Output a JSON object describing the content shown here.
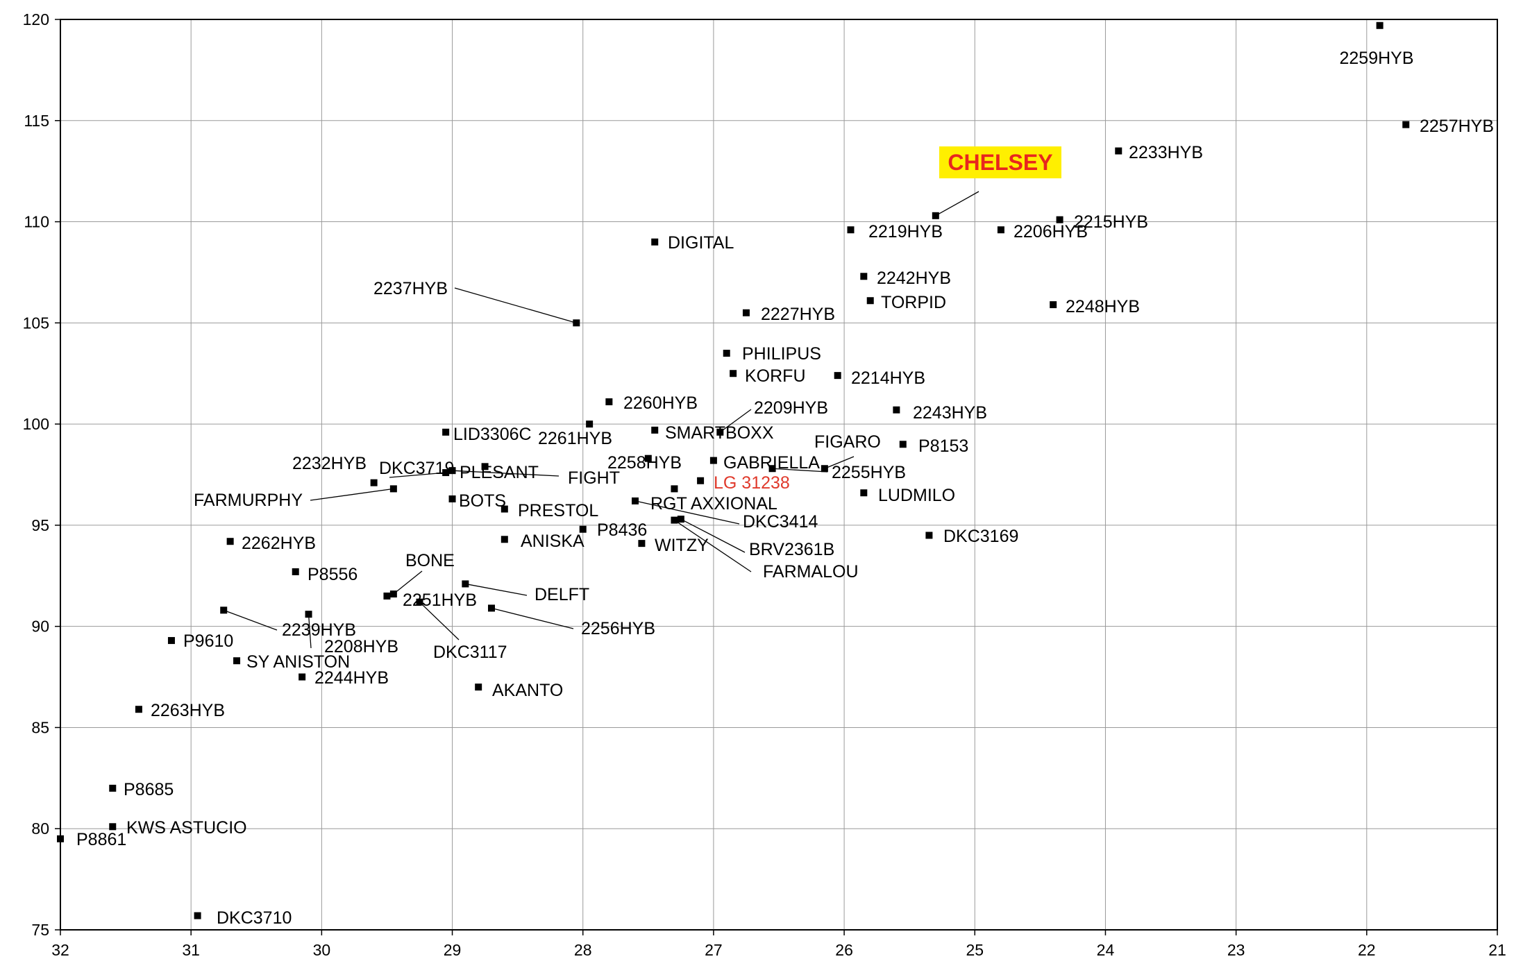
{
  "chart_data": {
    "type": "scatter",
    "xlim": [
      32,
      21
    ],
    "ylim": [
      75,
      120
    ],
    "x_ticks": [
      "32",
      "31",
      "30",
      "29",
      "28",
      "27",
      "26",
      "25",
      "24",
      "23",
      "22",
      "21"
    ],
    "y_ticks": [
      "75",
      "80",
      "85",
      "90",
      "95",
      "100",
      "105",
      "110",
      "115",
      "120"
    ],
    "grid": true,
    "highlight_color": "#e8261e",
    "highlight_bg": "#ffef00",
    "points": [
      {
        "name": "2259HYB",
        "x": 21.9,
        "y": 119.7
      },
      {
        "name": "2257HYB",
        "x": 21.7,
        "y": 114.8
      },
      {
        "name": "2233HYB",
        "x": 23.9,
        "y": 113.5
      },
      {
        "name": "CHELSEY",
        "x": 25.3,
        "y": 110.3,
        "highlight": true
      },
      {
        "name": "2215HYB",
        "x": 24.35,
        "y": 110.1
      },
      {
        "name": "2219HYB",
        "x": 25.95,
        "y": 109.6
      },
      {
        "name": "2206HYB",
        "x": 24.8,
        "y": 109.6
      },
      {
        "name": "DIGITAL",
        "x": 27.45,
        "y": 109.0
      },
      {
        "name": "2242HYB",
        "x": 25.85,
        "y": 107.3
      },
      {
        "name": "TORPID",
        "x": 25.8,
        "y": 106.1
      },
      {
        "name": "2248HYB",
        "x": 24.4,
        "y": 105.9
      },
      {
        "name": "2227HYB",
        "x": 26.75,
        "y": 105.5
      },
      {
        "name": "2237HYB",
        "x": 28.05,
        "y": 105.0
      },
      {
        "name": "PHILIPUS",
        "x": 26.9,
        "y": 103.5
      },
      {
        "name": "KORFU",
        "x": 26.85,
        "y": 102.5
      },
      {
        "name": "2214HYB",
        "x": 26.05,
        "y": 102.4
      },
      {
        "name": "2260HYB",
        "x": 27.8,
        "y": 101.1
      },
      {
        "name": "2209HYB",
        "x": 26.95,
        "y": 99.6
      },
      {
        "name": "2243HYB",
        "x": 25.6,
        "y": 100.7
      },
      {
        "name": "2261HYB",
        "x": 27.95,
        "y": 100.0
      },
      {
        "name": "LID3306C",
        "x": 29.05,
        "y": 99.6
      },
      {
        "name": "SMARTBOXX",
        "x": 27.45,
        "y": 99.7
      },
      {
        "name": "P8153",
        "x": 25.55,
        "y": 99.0
      },
      {
        "name": "FIGARO",
        "x": 26.15,
        "y": 97.8
      },
      {
        "name": "GABRIELLA",
        "x": 27.0,
        "y": 98.2
      },
      {
        "name": "2258HYB",
        "x": 27.5,
        "y": 98.3
      },
      {
        "name": "2255HYB",
        "x": 26.55,
        "y": 97.8
      },
      {
        "name": "PLESANT",
        "x": 28.75,
        "y": 97.9
      },
      {
        "name": "FIGHT",
        "x": 29.0,
        "y": 97.7
      },
      {
        "name": "DKC3719",
        "x": 29.05,
        "y": 97.6
      },
      {
        "name": "2232HYB",
        "x": 29.6,
        "y": 97.1
      },
      {
        "name": "FARMURPHY",
        "x": 29.45,
        "y": 96.8
      },
      {
        "name": "LG 31238",
        "x": 27.1,
        "y": 97.2,
        "red": true
      },
      {
        "name": "LUDMILO",
        "x": 25.85,
        "y": 96.6
      },
      {
        "name": "BOTS",
        "x": 29.0,
        "y": 96.3
      },
      {
        "name": "RGT AXXIONAL",
        "x": 27.3,
        "y": 96.8
      },
      {
        "name": "PRESTOL",
        "x": 28.6,
        "y": 95.8
      },
      {
        "name": "DKC3414",
        "x": 27.6,
        "y": 96.2
      },
      {
        "name": "BRV2361B",
        "x": 27.25,
        "y": 95.3
      },
      {
        "name": "FARMALOU",
        "x": 27.3,
        "y": 95.25
      },
      {
        "name": "P8436",
        "x": 28.0,
        "y": 94.8
      },
      {
        "name": "DKC3169",
        "x": 25.35,
        "y": 94.5
      },
      {
        "name": "ANISKA",
        "x": 28.6,
        "y": 94.3
      },
      {
        "name": "WITZY",
        "x": 27.55,
        "y": 94.1
      },
      {
        "name": "2262HYB",
        "x": 30.7,
        "y": 94.2
      },
      {
        "name": "P8556",
        "x": 30.2,
        "y": 92.7
      },
      {
        "name": "DELFT",
        "x": 28.9,
        "y": 92.1
      },
      {
        "name": "BONE",
        "x": 29.45,
        "y": 91.6
      },
      {
        "name": "2251HYB",
        "x": 29.5,
        "y": 91.5
      },
      {
        "name": "DKC3117",
        "x": 29.25,
        "y": 91.2
      },
      {
        "name": "2256HYB",
        "x": 28.7,
        "y": 90.9
      },
      {
        "name": "2239HYB",
        "x": 30.75,
        "y": 90.8
      },
      {
        "name": "2208HYB",
        "x": 30.1,
        "y": 90.6
      },
      {
        "name": "P9610",
        "x": 31.15,
        "y": 89.3
      },
      {
        "name": "SY ANISTON",
        "x": 30.65,
        "y": 88.3
      },
      {
        "name": "2244HYB",
        "x": 30.15,
        "y": 87.5
      },
      {
        "name": "AKANTO",
        "x": 28.8,
        "y": 87.0
      },
      {
        "name": "2263HYB",
        "x": 31.4,
        "y": 85.9
      },
      {
        "name": "P8685",
        "x": 31.6,
        "y": 82.0
      },
      {
        "name": "KWS ASTUCIO",
        "x": 31.6,
        "y": 80.1
      },
      {
        "name": "P8861",
        "x": 32.0,
        "y": 79.5
      },
      {
        "name": "DKC3710",
        "x": 30.95,
        "y": 75.7
      }
    ]
  }
}
